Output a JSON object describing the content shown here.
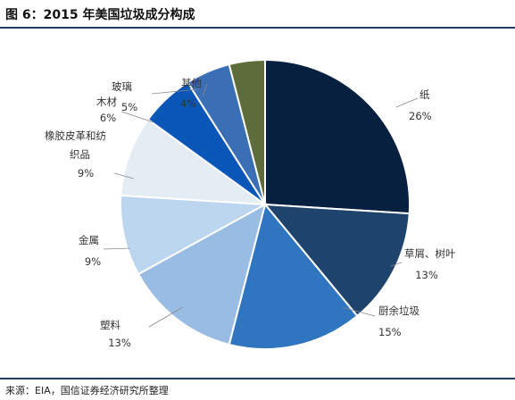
{
  "figure": {
    "title": "图 6：2015 年美国垃圾成分构成",
    "source": "来源：EIA，国信证券经济研究所整理"
  },
  "chart_data": {
    "type": "pie",
    "title": "图 6：2015 年美国垃圾成分构成",
    "unit": "%",
    "slices": [
      {
        "name": "纸",
        "value": 26,
        "label": "26%",
        "color": "#07203f"
      },
      {
        "name": "草屑、树叶",
        "value": 13,
        "label": "13%",
        "color": "#1e446e"
      },
      {
        "name": "厨余垃圾",
        "value": 15,
        "label": "15%",
        "color": "#2f75bf"
      },
      {
        "name": "塑料",
        "value": 13,
        "label": "13%",
        "color": "#99bce3"
      },
      {
        "name": "金属",
        "value": 9,
        "label": "9%",
        "color": "#bdd6f0"
      },
      {
        "name": "橡胶皮革和纺织品",
        "value": 9,
        "label": "9%",
        "color": "#e3edf3"
      },
      {
        "name": "木材",
        "value": 6,
        "label": "6%",
        "color": "#0a57b8"
      },
      {
        "name": "玻璃",
        "value": 5,
        "label": "5%",
        "color": "#3a6fb5"
      },
      {
        "name": "其他",
        "value": 4,
        "label": "4%",
        "color": "#5e6b3a"
      }
    ]
  }
}
